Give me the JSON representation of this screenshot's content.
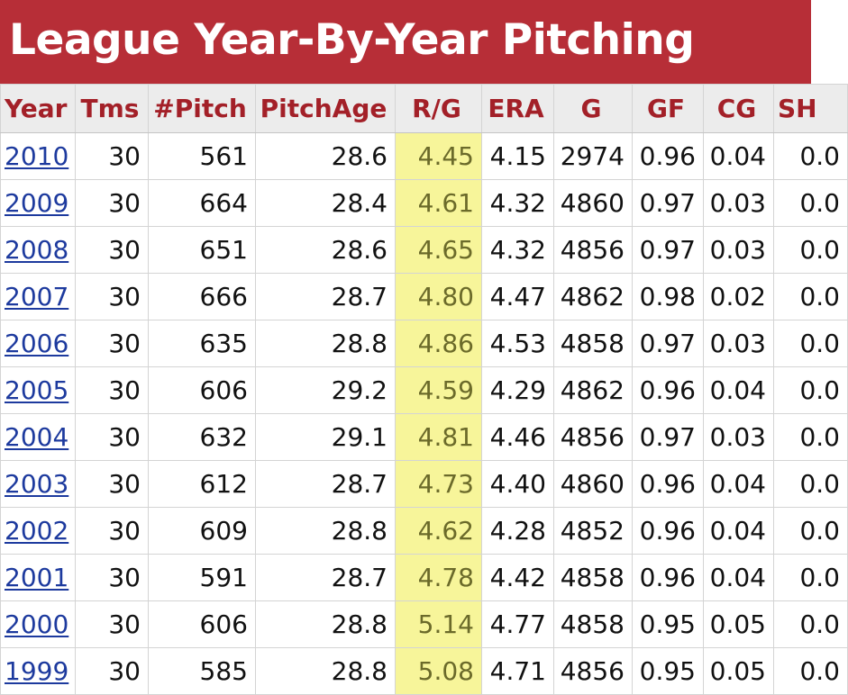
{
  "page_title": "League Year-By-Year Pitching",
  "highlight_color": "#f7f59a",
  "header_color": "#b72e37",
  "columns": [
    "Year",
    "Tms",
    "#Pitch",
    "PitchAge",
    "R/G",
    "ERA",
    "G",
    "GF",
    "CG",
    "SH"
  ],
  "rows": [
    {
      "year": "2010",
      "tms": "30",
      "pitch": "561",
      "age": "28.6",
      "rg": "4.45",
      "era": "4.15",
      "g": "2974",
      "gf": "0.96",
      "cg": "0.04",
      "sh": "0.0"
    },
    {
      "year": "2009",
      "tms": "30",
      "pitch": "664",
      "age": "28.4",
      "rg": "4.61",
      "era": "4.32",
      "g": "4860",
      "gf": "0.97",
      "cg": "0.03",
      "sh": "0.0"
    },
    {
      "year": "2008",
      "tms": "30",
      "pitch": "651",
      "age": "28.6",
      "rg": "4.65",
      "era": "4.32",
      "g": "4856",
      "gf": "0.97",
      "cg": "0.03",
      "sh": "0.0"
    },
    {
      "year": "2007",
      "tms": "30",
      "pitch": "666",
      "age": "28.7",
      "rg": "4.80",
      "era": "4.47",
      "g": "4862",
      "gf": "0.98",
      "cg": "0.02",
      "sh": "0.0"
    },
    {
      "year": "2006",
      "tms": "30",
      "pitch": "635",
      "age": "28.8",
      "rg": "4.86",
      "era": "4.53",
      "g": "4858",
      "gf": "0.97",
      "cg": "0.03",
      "sh": "0.0"
    },
    {
      "year": "2005",
      "tms": "30",
      "pitch": "606",
      "age": "29.2",
      "rg": "4.59",
      "era": "4.29",
      "g": "4862",
      "gf": "0.96",
      "cg": "0.04",
      "sh": "0.0"
    },
    {
      "year": "2004",
      "tms": "30",
      "pitch": "632",
      "age": "29.1",
      "rg": "4.81",
      "era": "4.46",
      "g": "4856",
      "gf": "0.97",
      "cg": "0.03",
      "sh": "0.0"
    },
    {
      "year": "2003",
      "tms": "30",
      "pitch": "612",
      "age": "28.7",
      "rg": "4.73",
      "era": "4.40",
      "g": "4860",
      "gf": "0.96",
      "cg": "0.04",
      "sh": "0.0"
    },
    {
      "year": "2002",
      "tms": "30",
      "pitch": "609",
      "age": "28.8",
      "rg": "4.62",
      "era": "4.28",
      "g": "4852",
      "gf": "0.96",
      "cg": "0.04",
      "sh": "0.0"
    },
    {
      "year": "2001",
      "tms": "30",
      "pitch": "591",
      "age": "28.7",
      "rg": "4.78",
      "era": "4.42",
      "g": "4858",
      "gf": "0.96",
      "cg": "0.04",
      "sh": "0.0"
    },
    {
      "year": "2000",
      "tms": "30",
      "pitch": "606",
      "age": "28.8",
      "rg": "5.14",
      "era": "4.77",
      "g": "4858",
      "gf": "0.95",
      "cg": "0.05",
      "sh": "0.0"
    },
    {
      "year": "1999",
      "tms": "30",
      "pitch": "585",
      "age": "28.8",
      "rg": "5.08",
      "era": "4.71",
      "g": "4856",
      "gf": "0.95",
      "cg": "0.05",
      "sh": "0.0"
    }
  ]
}
